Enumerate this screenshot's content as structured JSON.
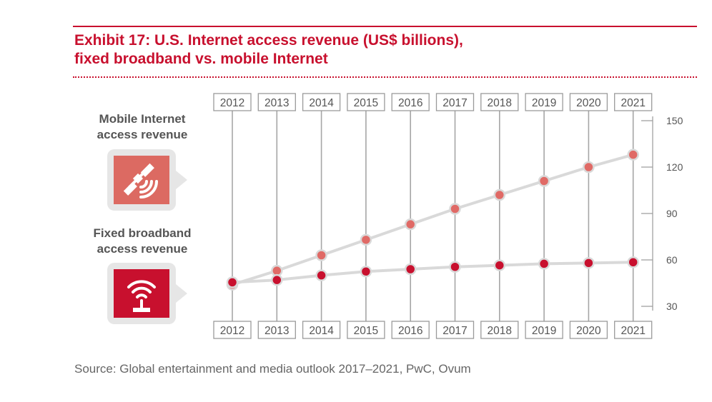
{
  "header": {
    "title_line1": "Exhibit 17: U.S. Internet access revenue (US$ billions),",
    "title_line2": "fixed broadband vs. mobile Internet"
  },
  "legend": {
    "mobile_line1": "Mobile Internet",
    "mobile_line2": "access revenue",
    "mobile_icon": "satellite-icon",
    "fixed_line1": "Fixed broadband",
    "fixed_line2": "access revenue",
    "fixed_icon": "router-icon"
  },
  "footer": {
    "source": "Source: Global entertainment and media outlook 2017–2021, PwC, Ovum"
  },
  "colors": {
    "mobile": "#e06a66",
    "mobile_icon_bg": "#dc6a62",
    "fixed": "#c8102e",
    "connector": "#d9d9d9"
  },
  "chart_data": {
    "type": "line",
    "x": [
      "2012",
      "2013",
      "2014",
      "2015",
      "2016",
      "2017",
      "2018",
      "2019",
      "2020",
      "2021"
    ],
    "series": [
      {
        "name": "Mobile Internet access revenue",
        "values": [
          44,
          53,
          63,
          73,
          83,
          93,
          102,
          111,
          120,
          128
        ]
      },
      {
        "name": "Fixed broadband access revenue",
        "values": [
          45.5,
          47,
          50,
          52.5,
          54,
          55.5,
          56.5,
          57.5,
          58,
          58.5
        ]
      }
    ],
    "yticks": [
      30,
      60,
      90,
      120,
      150
    ],
    "ylim": [
      30,
      150
    ],
    "y_axis_side": "right",
    "grid": false
  }
}
